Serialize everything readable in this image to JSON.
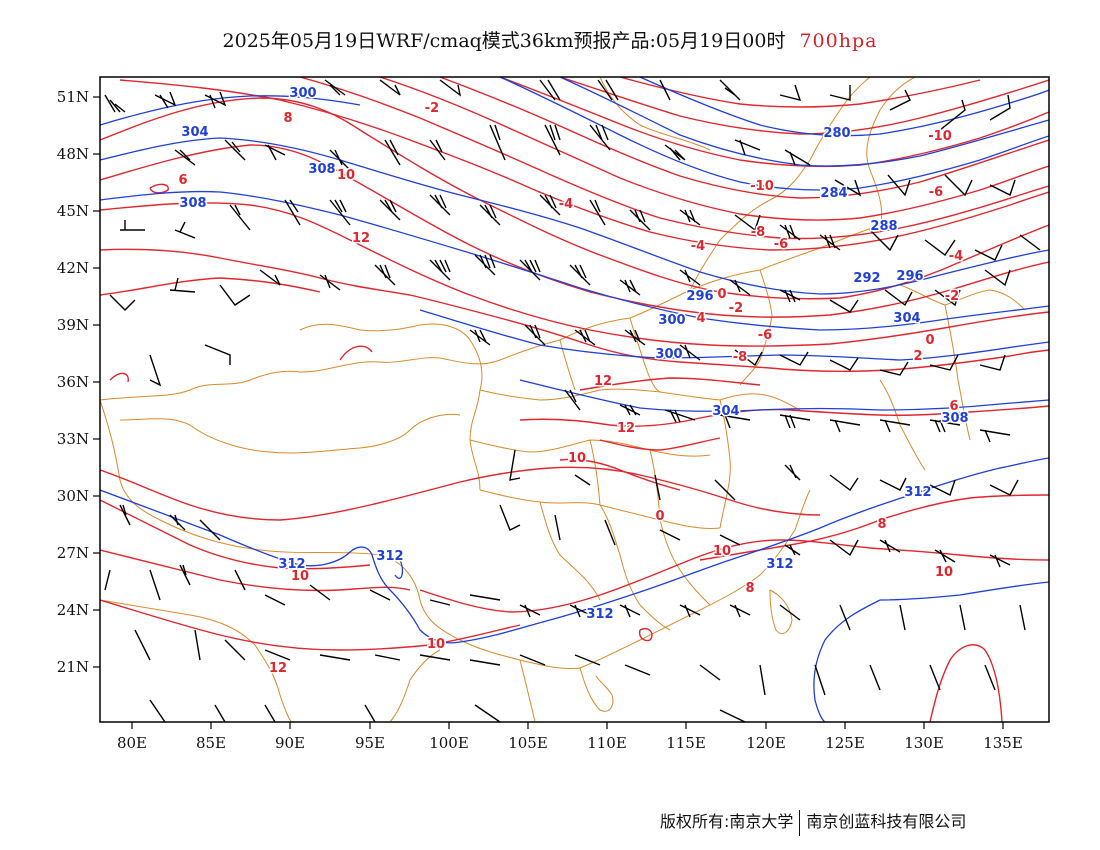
{
  "title": {
    "main": "2025年05月19日WRF/cmaq模式36km预报产品:05月19日00时",
    "level": "700hpa"
  },
  "axes": {
    "lat_labels": [
      "51N",
      "48N",
      "45N",
      "42N",
      "39N",
      "36N",
      "33N",
      "30N",
      "27N",
      "24N",
      "21N"
    ],
    "lon_labels": [
      "80E",
      "85E",
      "90E",
      "95E",
      "100E",
      "105E",
      "110E",
      "115E",
      "120E",
      "125E",
      "130E",
      "135E"
    ]
  },
  "colors": {
    "height_contours": "#1f3fd6",
    "temperature_contours": "#e0262e",
    "boundaries": "#d98a2c",
    "wind_barbs": "#000000"
  },
  "height_labels": [
    "300",
    "304",
    "308",
    "308",
    "280",
    "284",
    "288",
    "292",
    "296",
    "296",
    "300",
    "304",
    "300",
    "304",
    "308",
    "312",
    "312",
    "312",
    "312",
    "312"
  ],
  "temp_labels": [
    "-2",
    "8",
    "6",
    "10",
    "12",
    "-4",
    "-10",
    "-8",
    "-6",
    "-4",
    "0",
    "-2",
    "4",
    "-6",
    "-8",
    "-10",
    "-6",
    "-4",
    "-2",
    "0",
    "2",
    "6",
    "12",
    "12",
    "10",
    "0",
    "10",
    "8",
    "10",
    "8",
    "10",
    "12",
    "10"
  ],
  "footer": {
    "copyright": "版权所有:南京大学",
    "company": "南京创蓝科技有限公司"
  }
}
